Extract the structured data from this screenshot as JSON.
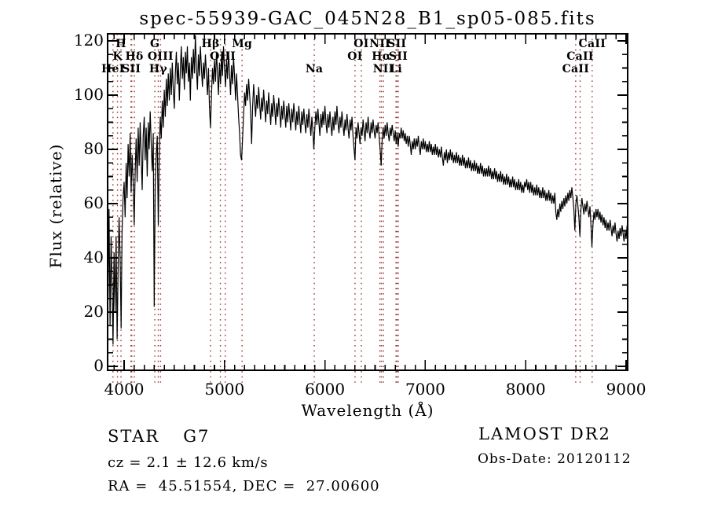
{
  "title": "spec-55939-GAC_045N28_B1_sp05-085.fits",
  "footer": {
    "object_class": "STAR",
    "subclass": "G7",
    "cz_line": "cz = 2.1 ± 12.6 km/s",
    "ra_dec_line": "RA =  45.51554, DEC =  27.00600",
    "survey": "LAMOST DR2",
    "obs_date_line": "Obs-Date: 20120112"
  },
  "chart_data": {
    "type": "line",
    "title": "spec-55939-GAC_045N28_B1_sp05-085.fits",
    "xlabel": "Wavelength (Å)",
    "ylabel": "Flux (relative)",
    "xlim": [
      3836,
      9023
    ],
    "ylim": [
      0,
      120
    ],
    "x_major_ticks": [
      4000,
      5000,
      6000,
      7000,
      8000,
      9000
    ],
    "x_minor_step": 100,
    "y_major_ticks": [
      0,
      20,
      40,
      60,
      80,
      100,
      120
    ],
    "y_minor_step": 5,
    "grid": false,
    "legend": null,
    "line_color": "#000000",
    "marker_color": "#9a392f",
    "line_markers": [
      3889,
      3934,
      3969,
      4068,
      4076,
      4102,
      4306,
      4340,
      4363,
      4861,
      4959,
      5007,
      5175,
      5894,
      6300,
      6363,
      6548,
      6563,
      6583,
      6708,
      6717,
      6731,
      8498,
      8542,
      8662
    ],
    "line_labels": [
      {
        "text": "H",
        "wavelength": 3969,
        "row": 1
      },
      {
        "text": "K",
        "wavelength": 3934,
        "row": 2
      },
      {
        "text": "HeI",
        "wavelength": 3889,
        "row": 3
      },
      {
        "text": "SII",
        "wavelength": 4072,
        "row": 3
      },
      {
        "text": "Hδ",
        "wavelength": 4102,
        "row": 2
      },
      {
        "text": "G",
        "wavelength": 4306,
        "row": 1
      },
      {
        "text": "OIII",
        "wavelength": 4363,
        "row": 2
      },
      {
        "text": "Hγ",
        "wavelength": 4340,
        "row": 3
      },
      {
        "text": "Hβ",
        "wavelength": 4861,
        "row": 1
      },
      {
        "text": "OIII",
        "wavelength": 4983,
        "row": 2
      },
      {
        "text": "Mg",
        "wavelength": 5175,
        "row": 1
      },
      {
        "text": "Na",
        "wavelength": 5894,
        "row": 3
      },
      {
        "text": "OI",
        "wavelength": 6363,
        "row": 1
      },
      {
        "text": "OI",
        "wavelength": 6300,
        "row": 2
      },
      {
        "text": "NII",
        "wavelength": 6548,
        "row": 1
      },
      {
        "text": "SII",
        "wavelength": 6717,
        "row": 1
      },
      {
        "text": "Hα",
        "wavelength": 6563,
        "row": 2
      },
      {
        "text": "SII",
        "wavelength": 6731,
        "row": 2
      },
      {
        "text": "NII",
        "wavelength": 6583,
        "row": 3
      },
      {
        "text": "Li",
        "wavelength": 6708,
        "row": 3
      },
      {
        "text": "CaII",
        "wavelength": 8662,
        "row": 1
      },
      {
        "text": "CaII",
        "wavelength": 8542,
        "row": 2
      },
      {
        "text": "CaII",
        "wavelength": 8498,
        "row": 3
      }
    ],
    "series": [
      {
        "name": "spectrum",
        "lambda_start": 3830,
        "lambda_step": 10,
        "flux": [
          45,
          25,
          58,
          15,
          48,
          28,
          8,
          42,
          20,
          48,
          10,
          35,
          55,
          40,
          14,
          50,
          62,
          68,
          55,
          75,
          62,
          82,
          70,
          86,
          64,
          78,
          68,
          52,
          72,
          84,
          68,
          88,
          74,
          90,
          78,
          65,
          85,
          92,
          76,
          88,
          70,
          90,
          80,
          94,
          82,
          72,
          86,
          22,
          68,
          78,
          85,
          52,
          78,
          92,
          84,
          98,
          88,
          102,
          92,
          106,
          96,
          108,
          98,
          110,
          100,
          112,
          102,
          95,
          108,
          116,
          104,
          112,
          98,
          110,
          118,
          106,
          114,
          102,
          116,
          108,
          118,
          105,
          112,
          98,
          114,
          106,
          117,
          108,
          122,
          110,
          102,
          115,
          107,
          118,
          110,
          103,
          112,
          106,
          115,
          108,
          100,
          110,
          96,
          88,
          100,
          110,
          104,
          113,
          105,
          116,
          108,
          100,
          112,
          104,
          115,
          107,
          118,
          110,
          103,
          113,
          106,
          116,
          108,
          100,
          111,
          104,
          114,
          107,
          98,
          108,
          100,
          92,
          86,
          78,
          76,
          84,
          93,
          101,
          96,
          104,
          98,
          106,
          100,
          94,
          82,
          96,
          104,
          98,
          92,
          100,
          95,
          103,
          97,
          91,
          99,
          94,
          102,
          96,
          90,
          98,
          93,
          101,
          95,
          89,
          97,
          92,
          100,
          95,
          89,
          97,
          92,
          99,
          94,
          88,
          96,
          91,
          98,
          93,
          88,
          96,
          90,
          97,
          92,
          87,
          95,
          90,
          97,
          92,
          87,
          94,
          89,
          96,
          91,
          86,
          94,
          89,
          95,
          90,
          86,
          93,
          88,
          95,
          90,
          85,
          92,
          87,
          80,
          88,
          94,
          89,
          95,
          90,
          85,
          93,
          88,
          94,
          89,
          96,
          90,
          86,
          93,
          88,
          94,
          89,
          85,
          92,
          87,
          94,
          89,
          96,
          90,
          86,
          92,
          88,
          94,
          89,
          85,
          91,
          87,
          93,
          88,
          84,
          91,
          87,
          92,
          85,
          80,
          76,
          88,
          84,
          90,
          86,
          82,
          88,
          85,
          91,
          87,
          83,
          90,
          86,
          92,
          87,
          84,
          90,
          86,
          91,
          87,
          84,
          89,
          86,
          90,
          85,
          80,
          74,
          83,
          88,
          84,
          89,
          85,
          90,
          86,
          83,
          88,
          85,
          89,
          86,
          83,
          87,
          82,
          86,
          81,
          86,
          84,
          88,
          84,
          87,
          83,
          86,
          82,
          85,
          81,
          85,
          82,
          78,
          83,
          80,
          84,
          80,
          84,
          81,
          85,
          81,
          78,
          83,
          80,
          84,
          80,
          83,
          79,
          82,
          79,
          83,
          79,
          82,
          78,
          81,
          78,
          82,
          78,
          81,
          77,
          80,
          77,
          81,
          77,
          74,
          79,
          76,
          80,
          75,
          79,
          76,
          80,
          76,
          79,
          75,
          78,
          75,
          79,
          75,
          78,
          74,
          77,
          74,
          78,
          74,
          77,
          73,
          76,
          73,
          77,
          73,
          76,
          72,
          75,
          72,
          76,
          72,
          75,
          71,
          74,
          71,
          75,
          71,
          74,
          70,
          73,
          70,
          73,
          70,
          74,
          70,
          73,
          69,
          72,
          69,
          73,
          69,
          72,
          68,
          71,
          68,
          72,
          68,
          71,
          67,
          70,
          67,
          71,
          67,
          70,
          66,
          69,
          66,
          70,
          66,
          69,
          65,
          68,
          65,
          69,
          65,
          68,
          64,
          67,
          64,
          68,
          66,
          69,
          65,
          68,
          64,
          68,
          64,
          67,
          63,
          66,
          63,
          67,
          63,
          66,
          62,
          65,
          62,
          66,
          62,
          65,
          61,
          64,
          61,
          65,
          61,
          64,
          60,
          63,
          60,
          64,
          57,
          54,
          58,
          55,
          60,
          57,
          61,
          58,
          62,
          59,
          63,
          60,
          64,
          61,
          65,
          62,
          66,
          62,
          58,
          50,
          60,
          63,
          59,
          55,
          48,
          58,
          62,
          59,
          56,
          60,
          57,
          61,
          58,
          55,
          59,
          52,
          44,
          52,
          57,
          54,
          58,
          55,
          58,
          54,
          57,
          53,
          56,
          52,
          55,
          51,
          54,
          50,
          53,
          50,
          54,
          51,
          48,
          52,
          49,
          53,
          49,
          46,
          50,
          47,
          51,
          48,
          52,
          49,
          46,
          50,
          47,
          52,
          42
        ]
      }
    ]
  }
}
